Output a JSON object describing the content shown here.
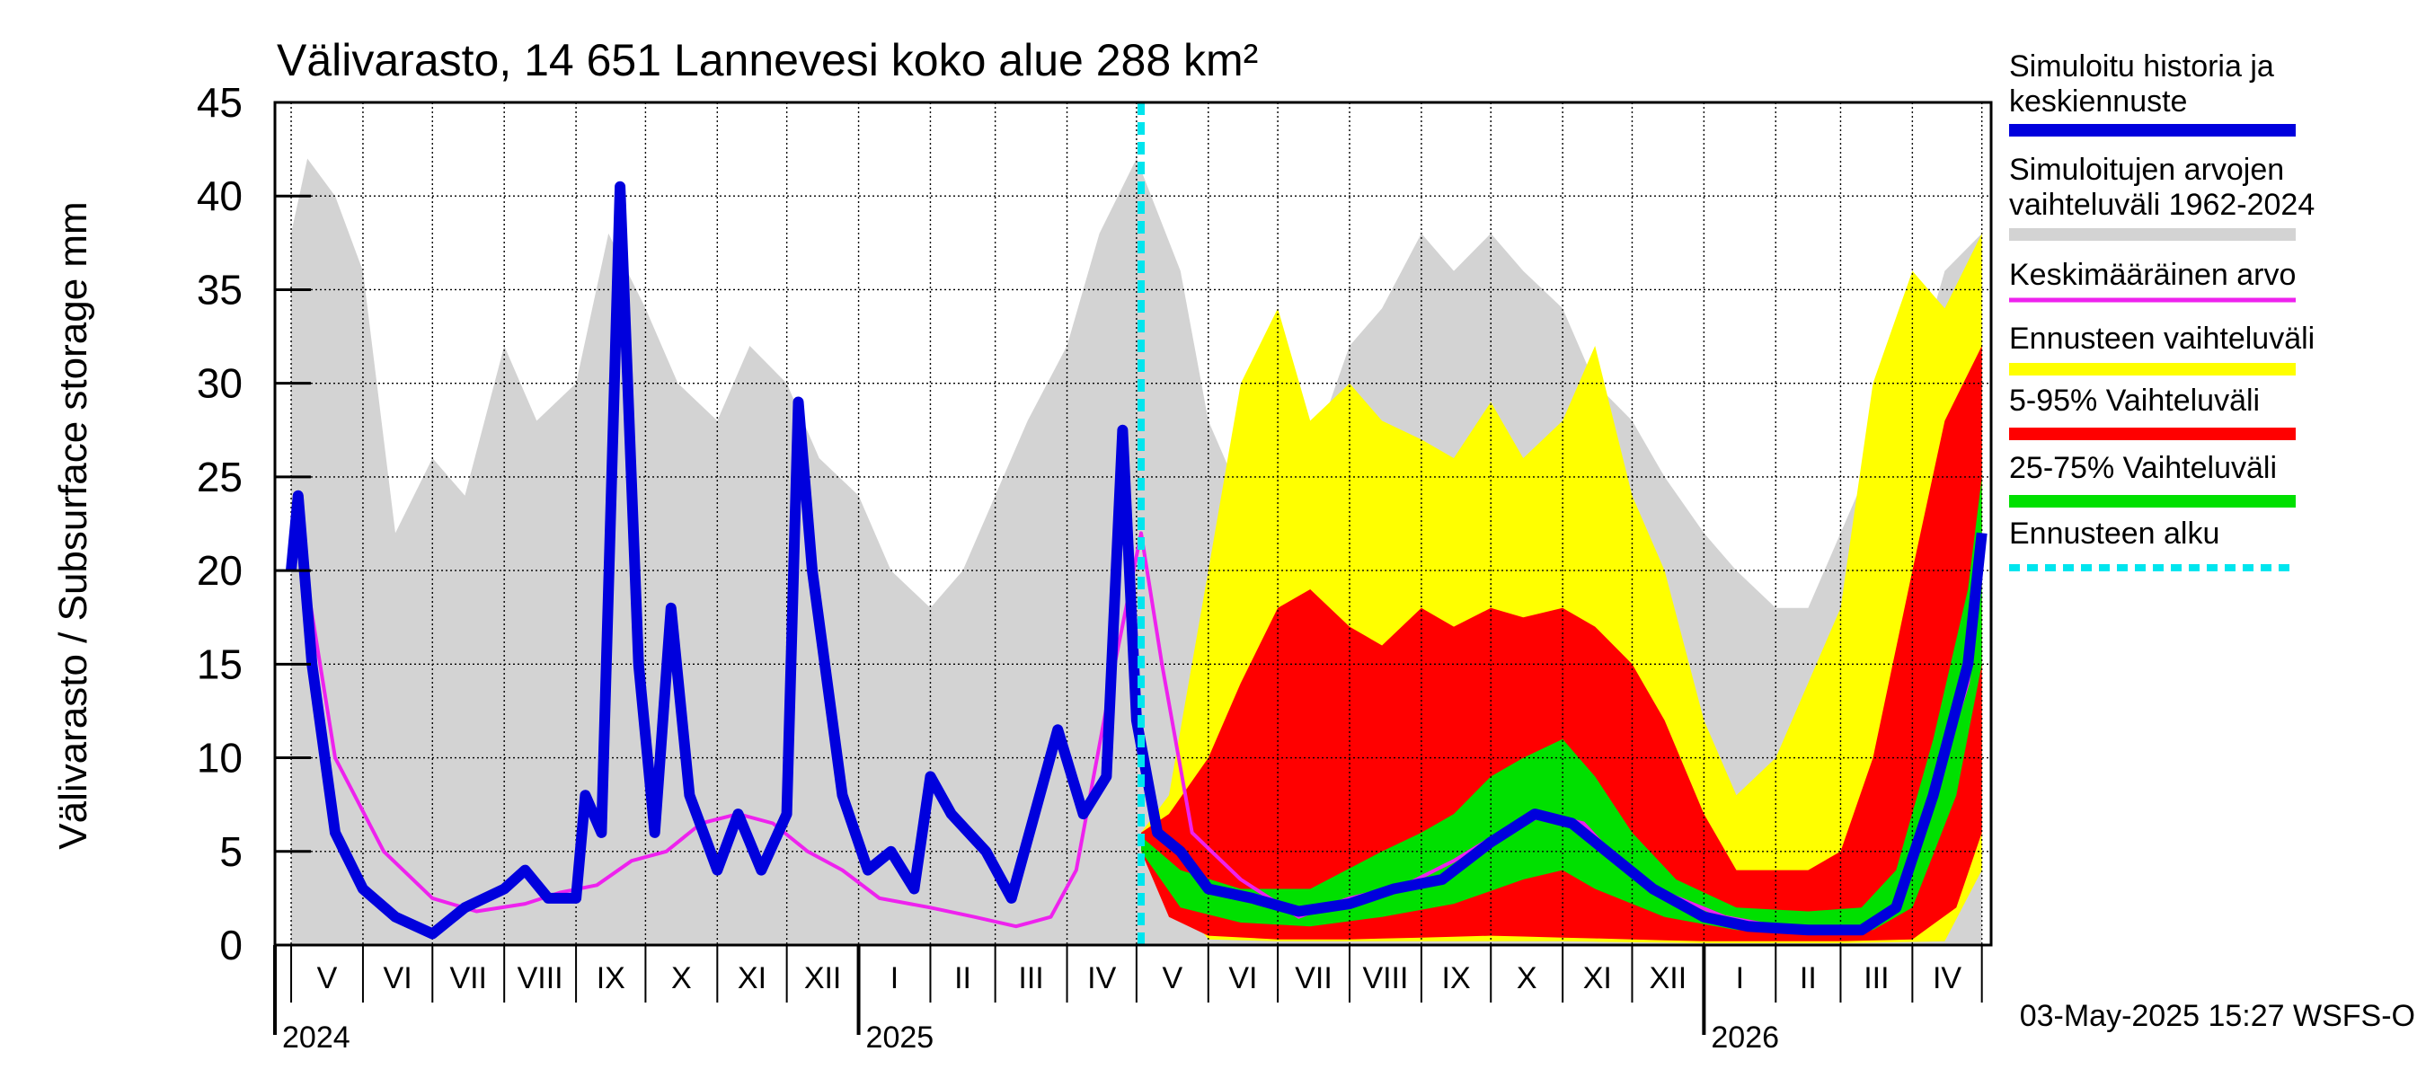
{
  "chart_data": {
    "type": "area",
    "title": "Välivarasto, 14 651 Lannevesi koko alue 288 km²",
    "ylabel": "Välivarasto / Subsurface storage  mm",
    "ylim": [
      0,
      45
    ],
    "yticks": [
      0,
      5,
      10,
      15,
      20,
      25,
      30,
      35,
      40,
      45
    ],
    "grid": true,
    "legend_position": "right",
    "forecast_start": "2025-05-03",
    "timestamp": "03-May-2025 15:27 WSFS-O",
    "months": [
      "V",
      "VI",
      "VII",
      "VIII",
      "IX",
      "X",
      "XI",
      "XII",
      "I",
      "II",
      "III",
      "IV",
      "V",
      "VI",
      "VII",
      "VIII",
      "IX",
      "X",
      "XI",
      "XII",
      "I",
      "II",
      "III",
      "IV"
    ],
    "years": [
      "2024",
      "2025",
      "2026"
    ],
    "colors": {
      "history": "#0000dd",
      "range": "#d3d3d3",
      "mean": "#ee22ee",
      "forecast_range": "#ffff00",
      "p5_95": "#ff0000",
      "p25_75": "#00e000",
      "forecast_start": "#00e5ee"
    },
    "legend": [
      {
        "label": [
          "Simuloitu historia ja",
          "keskiennuste"
        ],
        "color": "#0000dd",
        "style": "solid",
        "key": "history"
      },
      {
        "label": [
          "Simuloitujen arvojen",
          "vaihteluväli 1962-2024"
        ],
        "color": "#d3d3d3",
        "style": "solid",
        "key": "range"
      },
      {
        "label": [
          "Keskimääräinen arvo"
        ],
        "color": "#ee22ee",
        "style": "thin",
        "key": "mean"
      },
      {
        "label": [
          "Ennusteen vaihteluväli"
        ],
        "color": "#ffff00",
        "style": "solid",
        "key": "forecast_range"
      },
      {
        "label": [
          "5-95% Vaihteluväli"
        ],
        "color": "#ff0000",
        "style": "solid",
        "key": "p5_95"
      },
      {
        "label": [
          "25-75% Vaihteluväli"
        ],
        "color": "#00e000",
        "style": "solid",
        "key": "p25_75"
      },
      {
        "label": [
          "Ennusteen alku"
        ],
        "color": "#00e5ee",
        "style": "dashed",
        "key": "forecast_start"
      }
    ],
    "series": {
      "history_range_upper": [
        [
          "2024-05-01",
          38
        ],
        [
          "2024-05-08",
          42
        ],
        [
          "2024-05-20",
          40
        ],
        [
          "2024-06-01",
          36
        ],
        [
          "2024-06-15",
          22
        ],
        [
          "2024-07-01",
          26
        ],
        [
          "2024-07-15",
          24
        ],
        [
          "2024-08-01",
          32
        ],
        [
          "2024-08-15",
          28
        ],
        [
          "2024-09-01",
          30
        ],
        [
          "2024-09-15",
          38
        ],
        [
          "2024-10-01",
          34
        ],
        [
          "2024-10-15",
          30
        ],
        [
          "2024-11-01",
          28
        ],
        [
          "2024-11-15",
          32
        ],
        [
          "2024-12-01",
          30
        ],
        [
          "2024-12-15",
          26
        ],
        [
          "2025-01-01",
          24
        ],
        [
          "2025-01-15",
          20
        ],
        [
          "2025-02-01",
          18
        ],
        [
          "2025-02-15",
          20
        ],
        [
          "2025-03-01",
          24
        ],
        [
          "2025-03-15",
          28
        ],
        [
          "2025-04-01",
          32
        ],
        [
          "2025-04-15",
          38
        ],
        [
          "2025-05-01",
          42
        ],
        [
          "2025-05-20",
          36
        ],
        [
          "2025-06-01",
          28
        ],
        [
          "2025-06-15",
          24
        ],
        [
          "2025-07-01",
          28
        ],
        [
          "2025-07-15",
          26
        ],
        [
          "2025-08-01",
          32
        ],
        [
          "2025-08-15",
          34
        ],
        [
          "2025-09-01",
          38
        ],
        [
          "2025-09-15",
          36
        ],
        [
          "2025-10-01",
          38
        ],
        [
          "2025-10-15",
          36
        ],
        [
          "2025-11-01",
          34
        ],
        [
          "2025-11-15",
          30
        ],
        [
          "2025-12-01",
          28
        ],
        [
          "2025-12-15",
          25
        ],
        [
          "2026-01-01",
          22
        ],
        [
          "2026-01-15",
          20
        ],
        [
          "2026-02-01",
          18
        ],
        [
          "2026-02-15",
          18
        ],
        [
          "2026-03-01",
          22
        ],
        [
          "2026-03-15",
          26
        ],
        [
          "2026-04-01",
          30
        ],
        [
          "2026-04-15",
          36
        ],
        [
          "2026-05-01",
          38
        ]
      ],
      "history": [
        [
          "2024-05-01",
          20
        ],
        [
          "2024-05-04",
          24
        ],
        [
          "2024-05-10",
          15
        ],
        [
          "2024-05-20",
          6
        ],
        [
          "2024-06-01",
          3
        ],
        [
          "2024-06-15",
          1.5
        ],
        [
          "2024-07-01",
          0.6
        ],
        [
          "2024-07-15",
          2
        ],
        [
          "2024-08-01",
          3
        ],
        [
          "2024-08-10",
          4
        ],
        [
          "2024-08-20",
          2.5
        ],
        [
          "2024-09-01",
          2.5
        ],
        [
          "2024-09-05",
          8
        ],
        [
          "2024-09-12",
          6
        ],
        [
          "2024-09-20",
          40.5
        ],
        [
          "2024-09-28",
          15
        ],
        [
          "2024-10-05",
          6
        ],
        [
          "2024-10-12",
          18
        ],
        [
          "2024-10-20",
          8
        ],
        [
          "2024-11-01",
          4
        ],
        [
          "2024-11-10",
          7
        ],
        [
          "2024-11-20",
          4
        ],
        [
          "2024-12-01",
          7
        ],
        [
          "2024-12-06",
          29
        ],
        [
          "2024-12-12",
          20
        ],
        [
          "2024-12-25",
          8
        ],
        [
          "2025-01-05",
          4
        ],
        [
          "2025-01-15",
          5
        ],
        [
          "2025-01-25",
          3
        ],
        [
          "2025-02-01",
          9
        ],
        [
          "2025-02-10",
          7
        ],
        [
          "2025-02-25",
          5
        ],
        [
          "2025-03-08",
          2.5
        ],
        [
          "2025-03-18",
          7
        ],
        [
          "2025-03-28",
          11.5
        ],
        [
          "2025-04-08",
          7
        ],
        [
          "2025-04-18",
          9
        ],
        [
          "2025-04-25",
          27.5
        ],
        [
          "2025-05-01",
          12
        ],
        [
          "2025-05-10",
          6
        ],
        [
          "2025-05-20",
          5
        ],
        [
          "2025-06-01",
          3
        ],
        [
          "2025-06-20",
          2.5
        ],
        [
          "2025-07-10",
          1.8
        ],
        [
          "2025-08-01",
          2.2
        ],
        [
          "2025-08-20",
          3
        ],
        [
          "2025-09-10",
          3.5
        ],
        [
          "2025-10-01",
          5.5
        ],
        [
          "2025-10-20",
          7
        ],
        [
          "2025-11-05",
          6.5
        ],
        [
          "2025-11-20",
          5
        ],
        [
          "2025-12-10",
          3
        ],
        [
          "2026-01-01",
          1.5
        ],
        [
          "2026-01-20",
          1
        ],
        [
          "2026-02-15",
          0.8
        ],
        [
          "2026-03-10",
          0.8
        ],
        [
          "2026-03-25",
          2
        ],
        [
          "2026-04-10",
          8
        ],
        [
          "2026-04-25",
          15
        ],
        [
          "2026-05-01",
          22
        ]
      ],
      "mean": [
        [
          "2024-05-01",
          20
        ],
        [
          "2024-05-05",
          21.5
        ],
        [
          "2024-05-20",
          10
        ],
        [
          "2024-06-10",
          5
        ],
        [
          "2024-07-01",
          2.5
        ],
        [
          "2024-07-20",
          1.8
        ],
        [
          "2024-08-10",
          2.2
        ],
        [
          "2024-08-25",
          2.8
        ],
        [
          "2024-09-10",
          3.2
        ],
        [
          "2024-09-25",
          4.5
        ],
        [
          "2024-10-10",
          5
        ],
        [
          "2024-10-25",
          6.5
        ],
        [
          "2024-11-10",
          7
        ],
        [
          "2024-11-25",
          6.5
        ],
        [
          "2024-12-10",
          5
        ],
        [
          "2024-12-25",
          4
        ],
        [
          "2025-01-10",
          2.5
        ],
        [
          "2025-02-01",
          2
        ],
        [
          "2025-02-20",
          1.5
        ],
        [
          "2025-03-10",
          1.0
        ],
        [
          "2025-03-25",
          1.5
        ],
        [
          "2025-04-05",
          4
        ],
        [
          "2025-04-20",
          14
        ],
        [
          "2025-05-03",
          22
        ],
        [
          "2025-05-12",
          15
        ],
        [
          "2025-05-25",
          6
        ],
        [
          "2025-06-15",
          3.5
        ],
        [
          "2025-07-10",
          1.5
        ],
        [
          "2025-08-01",
          2.5
        ],
        [
          "2025-08-25",
          3.2
        ],
        [
          "2025-09-15",
          4.5
        ],
        [
          "2025-10-05",
          6
        ],
        [
          "2025-10-25",
          7
        ],
        [
          "2025-11-10",
          6.5
        ],
        [
          "2025-11-25",
          4.5
        ],
        [
          "2025-12-15",
          2.8
        ],
        [
          "2026-01-10",
          1.5
        ],
        [
          "2026-02-10",
          0.8
        ],
        [
          "2026-03-10",
          0.9
        ],
        [
          "2026-03-25",
          2
        ],
        [
          "2026-04-10",
          8
        ],
        [
          "2026-04-25",
          14
        ],
        [
          "2026-05-01",
          21
        ]
      ],
      "forecast_max": [
        [
          "2025-05-03",
          6
        ],
        [
          "2025-05-15",
          8
        ],
        [
          "2025-06-01",
          20
        ],
        [
          "2025-06-15",
          30
        ],
        [
          "2025-07-01",
          34
        ],
        [
          "2025-07-15",
          28
        ],
        [
          "2025-08-01",
          30
        ],
        [
          "2025-08-15",
          28
        ],
        [
          "2025-09-01",
          27
        ],
        [
          "2025-09-15",
          26
        ],
        [
          "2025-10-01",
          29
        ],
        [
          "2025-10-15",
          26
        ],
        [
          "2025-11-01",
          28
        ],
        [
          "2025-11-15",
          32
        ],
        [
          "2025-12-01",
          24
        ],
        [
          "2025-12-15",
          20
        ],
        [
          "2026-01-01",
          12
        ],
        [
          "2026-01-15",
          8
        ],
        [
          "2026-02-01",
          10
        ],
        [
          "2026-02-15",
          14
        ],
        [
          "2026-03-01",
          18
        ],
        [
          "2026-03-15",
          30
        ],
        [
          "2026-04-01",
          36
        ],
        [
          "2026-04-15",
          34
        ],
        [
          "2026-05-01",
          38
        ]
      ],
      "forecast_min": [
        [
          "2025-05-03",
          5
        ],
        [
          "2025-06-01",
          0.3
        ],
        [
          "2025-07-01",
          0.2
        ],
        [
          "2025-09-01",
          0.2
        ],
        [
          "2025-11-01",
          0.2
        ],
        [
          "2026-01-01",
          0.1
        ],
        [
          "2026-03-01",
          0.1
        ],
        [
          "2026-04-15",
          0.2
        ],
        [
          "2026-05-01",
          4
        ]
      ],
      "p95": [
        [
          "2025-05-03",
          6
        ],
        [
          "2025-05-15",
          7
        ],
        [
          "2025-06-01",
          10
        ],
        [
          "2025-06-15",
          14
        ],
        [
          "2025-07-01",
          18
        ],
        [
          "2025-07-15",
          19
        ],
        [
          "2025-08-01",
          17
        ],
        [
          "2025-08-15",
          16
        ],
        [
          "2025-09-01",
          18
        ],
        [
          "2025-09-15",
          17
        ],
        [
          "2025-10-01",
          18
        ],
        [
          "2025-10-15",
          17.5
        ],
        [
          "2025-11-01",
          18
        ],
        [
          "2025-11-15",
          17
        ],
        [
          "2025-12-01",
          15
        ],
        [
          "2025-12-15",
          12
        ],
        [
          "2026-01-01",
          7
        ],
        [
          "2026-01-15",
          4
        ],
        [
          "2026-02-01",
          4
        ],
        [
          "2026-02-15",
          4
        ],
        [
          "2026-03-01",
          5
        ],
        [
          "2026-03-15",
          10
        ],
        [
          "2026-04-01",
          20
        ],
        [
          "2026-04-15",
          28
        ],
        [
          "2026-05-01",
          32
        ]
      ],
      "p5": [
        [
          "2025-05-03",
          5
        ],
        [
          "2025-05-15",
          1.5
        ],
        [
          "2025-06-01",
          0.5
        ],
        [
          "2025-07-01",
          0.3
        ],
        [
          "2025-08-01",
          0.3
        ],
        [
          "2025-09-01",
          0.4
        ],
        [
          "2025-10-01",
          0.5
        ],
        [
          "2025-11-01",
          0.4
        ],
        [
          "2025-12-01",
          0.3
        ],
        [
          "2026-01-01",
          0.2
        ],
        [
          "2026-03-01",
          0.2
        ],
        [
          "2026-04-01",
          0.3
        ],
        [
          "2026-04-20",
          2
        ],
        [
          "2026-05-01",
          6
        ]
      ],
      "p75": [
        [
          "2025-05-03",
          5.8
        ],
        [
          "2025-05-20",
          4
        ],
        [
          "2025-06-15",
          3
        ],
        [
          "2025-07-15",
          3
        ],
        [
          "2025-08-15",
          5
        ],
        [
          "2025-09-01",
          6
        ],
        [
          "2025-09-15",
          7
        ],
        [
          "2025-10-01",
          9
        ],
        [
          "2025-10-15",
          10
        ],
        [
          "2025-11-01",
          11
        ],
        [
          "2025-11-15",
          9
        ],
        [
          "2025-12-01",
          6
        ],
        [
          "2025-12-20",
          3.5
        ],
        [
          "2026-01-15",
          2
        ],
        [
          "2026-02-15",
          1.8
        ],
        [
          "2026-03-10",
          2
        ],
        [
          "2026-03-25",
          4
        ],
        [
          "2026-04-10",
          11
        ],
        [
          "2026-04-25",
          19
        ],
        [
          "2026-05-01",
          25
        ]
      ],
      "p25": [
        [
          "2025-05-03",
          5
        ],
        [
          "2025-05-20",
          2
        ],
        [
          "2025-06-15",
          1.2
        ],
        [
          "2025-07-15",
          1.0
        ],
        [
          "2025-08-15",
          1.5
        ],
        [
          "2025-09-15",
          2.2
        ],
        [
          "2025-10-15",
          3.5
        ],
        [
          "2025-11-01",
          4
        ],
        [
          "2025-11-15",
          3
        ],
        [
          "2025-12-15",
          1.5
        ],
        [
          "2026-01-15",
          0.8
        ],
        [
          "2026-02-15",
          0.6
        ],
        [
          "2026-03-15",
          0.8
        ],
        [
          "2026-04-01",
          2
        ],
        [
          "2026-04-20",
          8
        ],
        [
          "2026-05-01",
          15
        ]
      ]
    }
  }
}
